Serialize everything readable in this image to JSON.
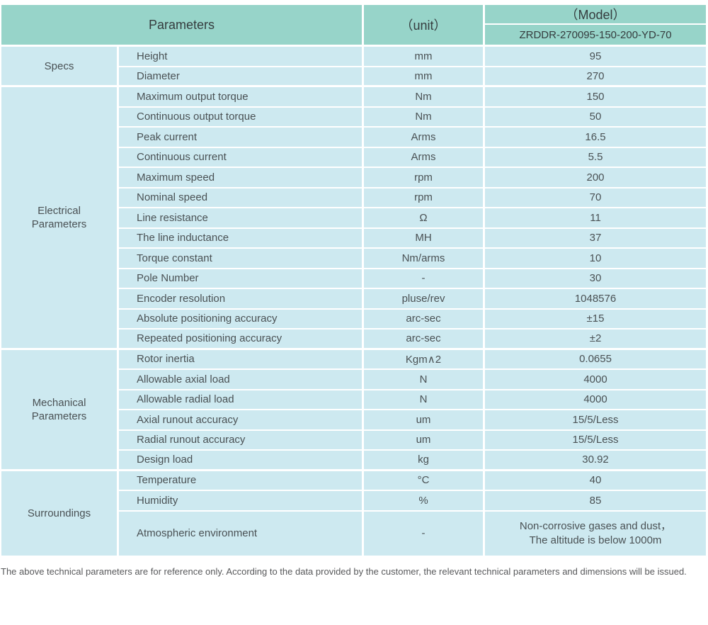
{
  "colors": {
    "header_bg": "#97d4c9",
    "body_bg": "#cde9f0",
    "grid_line": "#ffffff",
    "body_text": "#4a5154",
    "header_text": "#353c3e",
    "footer_text": "#58595b"
  },
  "table": {
    "header": {
      "parameters_label": "Parameters",
      "unit_label": "（unit）",
      "model_label": "（Model）",
      "model_value": "ZRDDR-270095-150-200-YD-70"
    },
    "sections": [
      {
        "label": "Specs",
        "rows": [
          {
            "name": "Height",
            "unit": "mm",
            "value": "95"
          },
          {
            "name": "Diameter",
            "unit": "mm",
            "value": "270"
          }
        ]
      },
      {
        "label": "Electrical\nParameters",
        "rows": [
          {
            "name": "Maximum output torque",
            "unit": "Nm",
            "value": "150"
          },
          {
            "name": "Continuous output torque",
            "unit": "Nm",
            "value": "50"
          },
          {
            "name": "Peak current",
            "unit": "Arms",
            "value": "16.5"
          },
          {
            "name": "Continuous current",
            "unit": "Arms",
            "value": "5.5"
          },
          {
            "name": "Maximum speed",
            "unit": "rpm",
            "value": "200"
          },
          {
            "name": "Nominal speed",
            "unit": "rpm",
            "value": "70"
          },
          {
            "name": "Line resistance",
            "unit": "Ω",
            "value": "11"
          },
          {
            "name": "The line inductance",
            "unit": "MH",
            "value": "37"
          },
          {
            "name": "Torque constant",
            "unit": "Nm/arms",
            "value": "10"
          },
          {
            "name": "Pole Number",
            "unit": "-",
            "value": "30"
          },
          {
            "name": "Encoder resolution",
            "unit": "pluse/rev",
            "value": "1048576"
          },
          {
            "name": "Absolute positioning accuracy",
            "unit": "arc-sec",
            "value": "±15"
          },
          {
            "name": "Repeated positioning accuracy",
            "unit": "arc-sec",
            "value": "±2"
          }
        ]
      },
      {
        "label": "Mechanical\nParameters",
        "rows": [
          {
            "name": "Rotor inertia",
            "unit": "Kgm∧2",
            "value": "0.0655"
          },
          {
            "name": "Allowable axial load",
            "unit": "N",
            "value": "4000"
          },
          {
            "name": "Allowable radial load",
            "unit": "N",
            "value": "4000"
          },
          {
            "name": "Axial runout accuracy",
            "unit": "um",
            "value": "15/5/Less"
          },
          {
            "name": "Radial runout accuracy",
            "unit": "um",
            "value": "15/5/Less"
          },
          {
            "name": "Design load",
            "unit": "kg",
            "value": "30.92"
          }
        ]
      },
      {
        "label": "Surroundings",
        "rows": [
          {
            "name": "Temperature",
            "unit": "°C",
            "value": "40"
          },
          {
            "name": "Humidity",
            "unit": "%",
            "value": "85"
          },
          {
            "name": "Atmospheric environment",
            "unit": "-",
            "tall": true,
            "value_lines": [
              "Non-corrosive gases and dust，",
              "The altitude is below 1000m"
            ]
          }
        ]
      }
    ]
  },
  "footer_note": "The above technical parameters are for reference only. According to the data provided by the customer, the relevant technical parameters and dimensions will be issued."
}
